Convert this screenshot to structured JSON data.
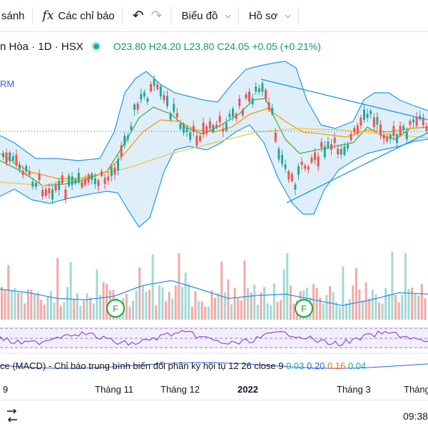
{
  "toolbar": {
    "compare_label": "sánh",
    "indicators_icon": "fx",
    "indicators_label": "Các chỉ báo",
    "undo_icon": "↶",
    "redo_icon": "↷",
    "chart_type_label": "Biểu đồ",
    "profile_label": "Hồ sơ"
  },
  "legend": {
    "symbol": "n Hòa · 1D · HSX",
    "open": "O23.80",
    "high": "H24.20",
    "low": "L23.80",
    "close": "C24.05",
    "change": "+0.05 (+0.21%)"
  },
  "indicator_label": "RM",
  "macd": {
    "label": "ce (MACD) - Chỉ báo trung bình biến đổi phân kỳ hội tụ 12 26 close 9",
    "v1": "0.03",
    "v2": "0.20",
    "v3": "0.16",
    "v4": "0.04"
  },
  "xaxis": [
    "9",
    "Tháng 11",
    "Tháng 12",
    "2022",
    "Tháng 3",
    "Tháng"
  ],
  "footer": {
    "time": "09:38"
  },
  "markers": [
    "F",
    "F"
  ],
  "colors": {
    "up": "#26a69a",
    "down": "#ef5350",
    "bollinger_fill": "#d6ebf7",
    "bollinger_line": "#2196f3",
    "ma_fast": "#4caf50",
    "ma_mid": "#ff9800",
    "ma_slow": "#f5c542",
    "trendline": "#2196f3",
    "rsi": "#7e57c2"
  }
}
